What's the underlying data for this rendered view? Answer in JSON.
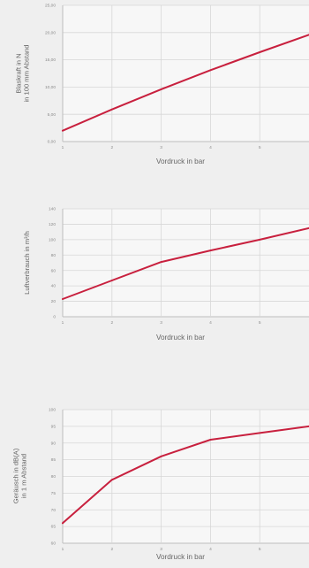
{
  "colors": {
    "line": "#c8203e",
    "background": "#efefef",
    "plot_background": "#f7f7f7",
    "grid": "#d7d7d7"
  },
  "chart_data": [
    {
      "type": "line",
      "xlabel": "Vordruck in bar",
      "ylabel": [
        "Blaskraft in N",
        "in 100 mm Abstand"
      ],
      "x_ticks": [
        1,
        2,
        3,
        4,
        5
      ],
      "y_tick_labels": [
        "0,00",
        "5,00",
        "10,00",
        "15,00",
        "20,00",
        "25,00"
      ],
      "xlim": [
        1,
        6
      ],
      "ylim": [
        0,
        25
      ],
      "grid": true,
      "series": [
        {
          "x": [
            1,
            2,
            3,
            4,
            5,
            6
          ],
          "values": [
            2.0,
            5.9,
            9.6,
            13.1,
            16.4,
            19.6
          ]
        }
      ]
    },
    {
      "type": "line",
      "xlabel": "Vordruck in bar",
      "ylabel": [
        "Luftverbrauch in m³/h"
      ],
      "x_ticks": [
        1,
        2,
        3,
        4,
        5
      ],
      "y_tick_labels": [
        "0",
        "20",
        "40",
        "60",
        "80",
        "100",
        "120",
        "140"
      ],
      "xlim": [
        1,
        6
      ],
      "ylim": [
        0,
        140
      ],
      "grid": true,
      "series": [
        {
          "x": [
            1,
            2,
            3,
            4,
            5,
            6
          ],
          "values": [
            23,
            47,
            71,
            86,
            100,
            115
          ]
        }
      ]
    },
    {
      "type": "line",
      "xlabel": "Vordruck in bar",
      "ylabel": [
        "Geräusch in dB(A)",
        "in 1 m Abstand"
      ],
      "x_ticks": [
        1,
        2,
        3,
        4,
        5
      ],
      "y_tick_labels": [
        "60",
        "65",
        "70",
        "75",
        "80",
        "85",
        "90",
        "95",
        "100"
      ],
      "xlim": [
        1,
        6
      ],
      "ylim": [
        60,
        100
      ],
      "grid": true,
      "series": [
        {
          "x": [
            1,
            2,
            3,
            4,
            5,
            6
          ],
          "values": [
            66,
            79,
            86,
            91,
            93,
            95
          ]
        }
      ]
    }
  ]
}
